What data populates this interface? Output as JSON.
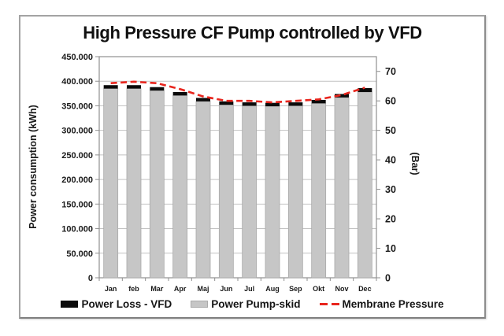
{
  "chart_data": {
    "type": "bar",
    "title": "High Pressure CF Pump controlled by VFD",
    "categories": [
      "Jan",
      "feb",
      "Mar",
      "Apr",
      "Maj",
      "Jun",
      "Jul",
      "Aug",
      "Sep",
      "Okt",
      "Nov",
      "Dec"
    ],
    "series": [
      {
        "name": "Power Pump-skid",
        "role": "bar-base",
        "axis": "left",
        "color": "#c6c6c6",
        "values": [
          385000,
          385000,
          381000,
          371000,
          359000,
          352000,
          350000,
          349000,
          350000,
          355000,
          367000,
          378000
        ]
      },
      {
        "name": "Power Loss - VFD",
        "role": "bar-top-stacked",
        "axis": "left",
        "color": "#0b0b0b",
        "values": [
          7000,
          7000,
          7000,
          7000,
          7000,
          7000,
          7000,
          7000,
          7000,
          7000,
          7000,
          8000
        ]
      },
      {
        "name": "Membrane Pressure",
        "role": "line",
        "axis": "right",
        "dashed": true,
        "color": "#e8251d",
        "values": [
          66,
          66.5,
          66,
          64,
          61.5,
          60,
          60,
          59.5,
          60,
          60.5,
          62,
          64.5
        ]
      }
    ],
    "left_axis": {
      "label": "Power consumption (kWh)",
      "min": 0,
      "max": 450000,
      "tick_step": 50000,
      "tick_labels": [
        "0",
        "50.000",
        "100.000",
        "150.000",
        "200.000",
        "250.000",
        "300.000",
        "350.000",
        "400.000",
        "450.000"
      ]
    },
    "right_axis": {
      "label": "(Bar)",
      "min": 0,
      "max": 75,
      "tick_step": 10,
      "tick_labels": [
        "0",
        "10",
        "20",
        "30",
        "40",
        "50",
        "60",
        "70"
      ]
    },
    "grid": true,
    "legend_position": "bottom"
  },
  "legend": {
    "items": [
      {
        "label": "Power Loss - VFD",
        "swatch": "black-rect"
      },
      {
        "label": "Power Pump-skid",
        "swatch": "gray-rect"
      },
      {
        "label": "Membrane Pressure",
        "swatch": "red-dashed-line"
      }
    ]
  },
  "colors": {
    "bar_gray": "#c6c6c6",
    "bar_gray_border": "#a9a9a9",
    "bar_black": "#0b0b0b",
    "line_red": "#e8251d",
    "gridline": "#c2c2c2",
    "axis_line": "#8f8f8f",
    "text": "#1a1a1a",
    "frame_border": "#a3a3a3"
  }
}
